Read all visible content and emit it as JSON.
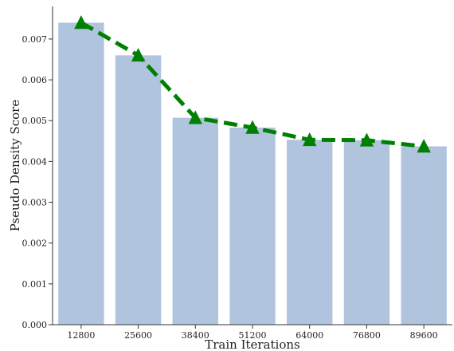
{
  "chart_data": {
    "type": "bar",
    "title": "",
    "xlabel": "Train Iterations",
    "ylabel": "Pseudo Density Score",
    "categories": [
      "12800",
      "25600",
      "38400",
      "51200",
      "64000",
      "76800",
      "89600"
    ],
    "ylim": [
      0,
      0.0078
    ],
    "yticks": [
      "0.000",
      "0.001",
      "0.002",
      "0.003",
      "0.004",
      "0.005",
      "0.006",
      "0.007"
    ],
    "grid": false,
    "legend": "none",
    "series": [
      {
        "type": "bar",
        "color": "#b0c4de",
        "values": [
          0.0074,
          0.0066,
          0.00507,
          0.00483,
          0.00453,
          0.00452,
          0.00437
        ]
      },
      {
        "type": "line",
        "color": "#008000",
        "line_style": "dashed",
        "marker": "triangle",
        "values": [
          0.0074,
          0.0066,
          0.00507,
          0.00483,
          0.00453,
          0.00452,
          0.00437
        ]
      }
    ]
  }
}
